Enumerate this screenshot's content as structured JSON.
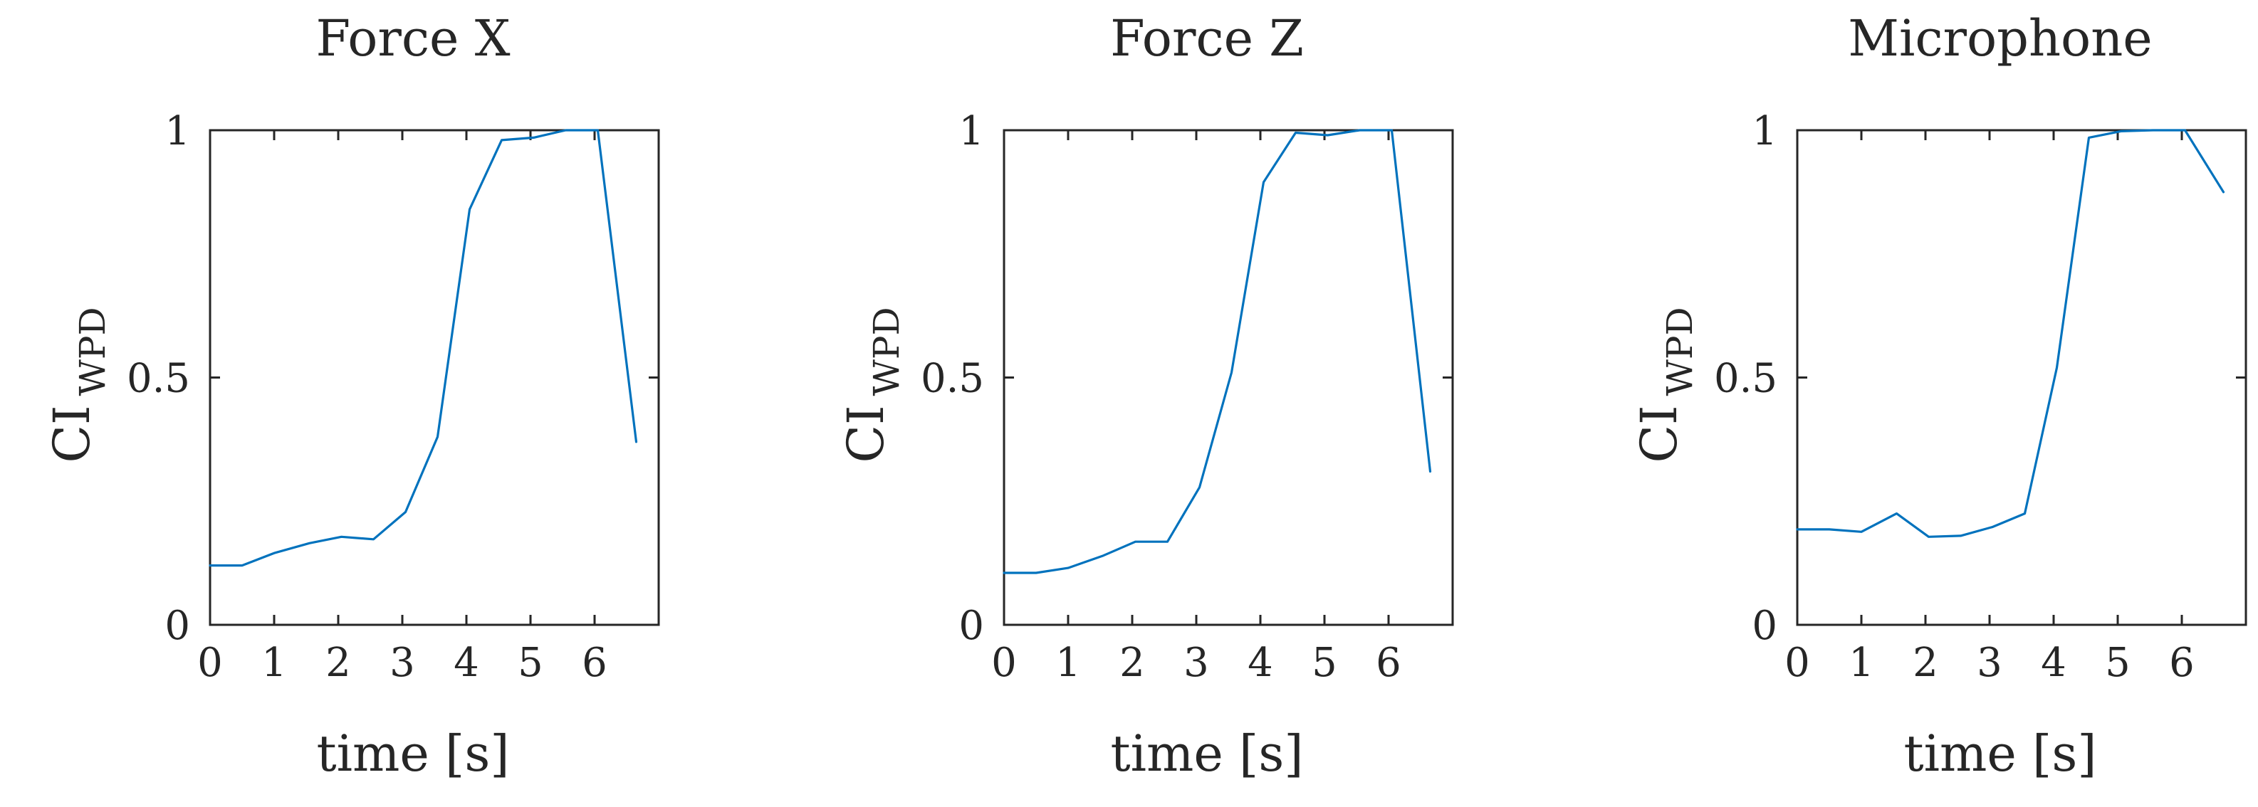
{
  "colors": {
    "series": "#0072BD",
    "axis": "#262626",
    "background": "#ffffff"
  },
  "chart_data": [
    {
      "type": "line",
      "title": "Force X",
      "xlabel": "time [s]",
      "ylabel": {
        "main": "CI",
        "subscript": "WPD"
      },
      "xlim": [
        0,
        7
      ],
      "ylim": [
        0,
        1
      ],
      "xticks": [
        0,
        1,
        2,
        3,
        4,
        5,
        6
      ],
      "yticks": [
        0,
        0.5,
        1
      ],
      "xtick_labels": [
        "0",
        "1",
        "2",
        "3",
        "4",
        "5",
        "6"
      ],
      "ytick_labels": [
        "0",
        "0.5",
        "1"
      ],
      "grid": false,
      "series": [
        {
          "x": [
            0,
            0.5,
            1,
            1.55,
            2.05,
            2.55,
            3.05,
            3.55,
            4.05,
            4.55,
            5.05,
            5.55,
            6.05,
            6.65
          ],
          "y": [
            0.12,
            0.12,
            0.145,
            0.165,
            0.178,
            0.173,
            0.228,
            0.38,
            0.84,
            0.98,
            0.985,
            1.0,
            1.0,
            0.37
          ]
        }
      ]
    },
    {
      "type": "line",
      "title": "Force Z",
      "xlabel": "time [s]",
      "ylabel": {
        "main": "CI",
        "subscript": "WPD"
      },
      "xlim": [
        0,
        7
      ],
      "ylim": [
        0,
        1
      ],
      "xticks": [
        0,
        1,
        2,
        3,
        4,
        5,
        6
      ],
      "yticks": [
        0,
        0.5,
        1
      ],
      "xtick_labels": [
        "0",
        "1",
        "2",
        "3",
        "4",
        "5",
        "6"
      ],
      "ytick_labels": [
        "0",
        "0.5",
        "1"
      ],
      "grid": false,
      "series": [
        {
          "x": [
            0,
            0.5,
            1,
            1.55,
            2.05,
            2.55,
            3.05,
            3.55,
            4.05,
            4.55,
            5.05,
            5.55,
            6.05,
            6.65
          ],
          "y": [
            0.105,
            0.105,
            0.115,
            0.14,
            0.168,
            0.168,
            0.278,
            0.51,
            0.895,
            0.995,
            0.99,
            1.0,
            1.0,
            0.31
          ]
        }
      ]
    },
    {
      "type": "line",
      "title": "Microphone",
      "xlabel": "time [s]",
      "ylabel": {
        "main": "CI",
        "subscript": "WPD"
      },
      "xlim": [
        0,
        7
      ],
      "ylim": [
        0,
        1
      ],
      "xticks": [
        0,
        1,
        2,
        3,
        4,
        5,
        6
      ],
      "yticks": [
        0,
        0.5,
        1
      ],
      "xtick_labels": [
        "0",
        "1",
        "2",
        "3",
        "4",
        "5",
        "6"
      ],
      "ytick_labels": [
        "0",
        "0.5",
        "1"
      ],
      "grid": false,
      "series": [
        {
          "x": [
            0,
            0.5,
            1,
            1.55,
            2.05,
            2.55,
            3.05,
            3.55,
            4.05,
            4.55,
            5.05,
            5.55,
            6.05,
            6.65
          ],
          "y": [
            0.193,
            0.193,
            0.188,
            0.225,
            0.178,
            0.18,
            0.198,
            0.225,
            0.52,
            0.985,
            0.998,
            1.0,
            1.0,
            0.875
          ]
        }
      ]
    }
  ]
}
